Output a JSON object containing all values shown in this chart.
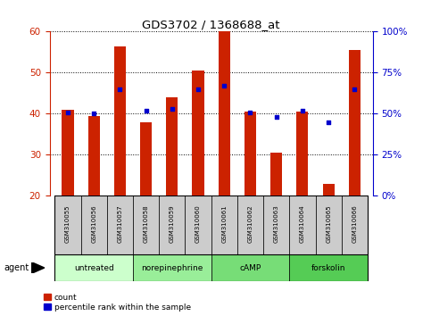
{
  "title": "GDS3702 / 1368688_at",
  "samples": [
    "GSM310055",
    "GSM310056",
    "GSM310057",
    "GSM310058",
    "GSM310059",
    "GSM310060",
    "GSM310061",
    "GSM310062",
    "GSM310063",
    "GSM310064",
    "GSM310065",
    "GSM310066"
  ],
  "counts": [
    41,
    39.5,
    56.5,
    38,
    44,
    50.5,
    60,
    40.5,
    30.5,
    40.5,
    23,
    55.5
  ],
  "percentile_ranks": [
    51,
    50,
    65,
    52,
    53,
    65,
    67,
    51,
    48,
    52,
    45,
    65
  ],
  "ylim_left": [
    20,
    60
  ],
  "ylim_right": [
    0,
    100
  ],
  "yticks_left": [
    20,
    30,
    40,
    50,
    60
  ],
  "yticks_right": [
    0,
    25,
    50,
    75,
    100
  ],
  "ytick_labels_right": [
    "0%",
    "25%",
    "50%",
    "75%",
    "100%"
  ],
  "bar_color": "#cc2200",
  "dot_color": "#0000cc",
  "bar_width": 0.45,
  "groups": [
    {
      "label": "untreated",
      "start": 0,
      "end": 3,
      "color": "#ccffcc"
    },
    {
      "label": "norepinephrine",
      "start": 3,
      "end": 6,
      "color": "#99ee99"
    },
    {
      "label": "cAMP",
      "start": 6,
      "end": 9,
      "color": "#77dd77"
    },
    {
      "label": "forskolin",
      "start": 9,
      "end": 12,
      "color": "#55cc55"
    }
  ],
  "agent_label": "agent",
  "legend_count_label": "count",
  "legend_percentile_label": "percentile rank within the sample",
  "plot_bg_color": "#ffffff",
  "sample_cell_color": "#cccccc",
  "grid_color": "#000000",
  "left_tick_color": "#cc2200",
  "right_tick_color": "#0000cc",
  "n_samples": 12
}
